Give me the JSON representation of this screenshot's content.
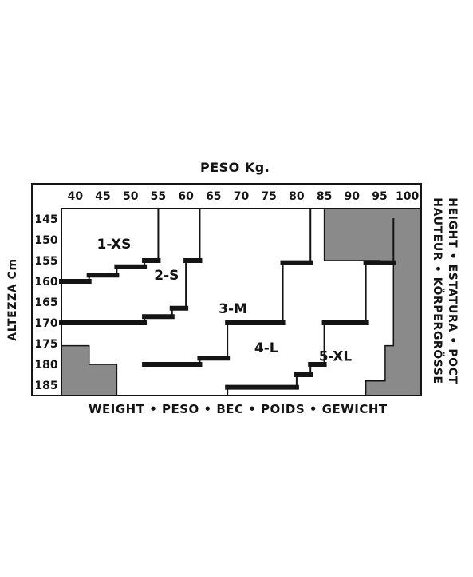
{
  "chart_data": {
    "type": "table",
    "title": "PESO Kg.",
    "xlabel": "WEIGHT • PESO • BEC • POIDS • GEWICHT",
    "ylabel": "ALTEZZA Cm",
    "right_label_line1": "HEIGHT • ESTATURA • POCT",
    "right_label_line2": "HAUTEUR • KÖRPERGRÖSSE",
    "x_ticks": [
      "40",
      "45",
      "50",
      "55",
      "60",
      "65",
      "70",
      "75",
      "80",
      "85",
      "90",
      "95",
      "100"
    ],
    "y_ticks": [
      "145",
      "150",
      "155",
      "160",
      "165",
      "170",
      "175",
      "180",
      "185"
    ],
    "xlim": [
      37.5,
      102.5
    ],
    "ylim": [
      142.5,
      187.5
    ],
    "sizes": [
      {
        "label": "1-XS",
        "label_x": 47,
        "label_y": 151
      },
      {
        "label": "2-S",
        "label_x": 56.5,
        "label_y": 158.5
      },
      {
        "label": "3-M",
        "label_x": 68.5,
        "label_y": 166.5
      },
      {
        "label": "4-L",
        "label_x": 74.5,
        "label_y": 176
      },
      {
        "label": "5-XL",
        "label_x": 87,
        "label_y": 178
      }
    ],
    "boundaries": [
      {
        "name": "xs-s",
        "points": [
          [
            37.5,
            160
          ],
          [
            42.5,
            160
          ],
          [
            42.5,
            158.5
          ],
          [
            47.5,
            158.5
          ],
          [
            47.5,
            156.5
          ],
          [
            52.5,
            156.5
          ],
          [
            52.5,
            155
          ],
          [
            55,
            155
          ],
          [
            55,
            142.5
          ]
        ]
      },
      {
        "name": "s-m",
        "points": [
          [
            37.5,
            170
          ],
          [
            52.5,
            170
          ],
          [
            52.5,
            168.5
          ],
          [
            57.5,
            168.5
          ],
          [
            57.5,
            166.5
          ],
          [
            60,
            166.5
          ],
          [
            60,
            155
          ],
          [
            62.5,
            155
          ],
          [
            62.5,
            142.5
          ]
        ]
      },
      {
        "name": "m-l",
        "points": [
          [
            52.5,
            180
          ],
          [
            62.5,
            180
          ],
          [
            62.5,
            178.5
          ],
          [
            67.5,
            178.5
          ],
          [
            67.5,
            170
          ],
          [
            72.5,
            170
          ],
          [
            72.5,
            170
          ],
          [
            77.5,
            170
          ],
          [
            77.5,
            155.5
          ],
          [
            82.5,
            155.5
          ],
          [
            82.5,
            142.5
          ]
        ]
      },
      {
        "name": "l-xl",
        "points": [
          [
            67.5,
            187.5
          ],
          [
            67.5,
            185.5
          ],
          [
            80,
            185.5
          ],
          [
            80,
            182.5
          ],
          [
            82.5,
            182.5
          ],
          [
            82.5,
            180
          ],
          [
            85,
            180
          ],
          [
            85,
            170
          ],
          [
            92.5,
            170
          ],
          [
            92.5,
            155.5
          ],
          [
            97.5,
            155.5
          ],
          [
            97.5,
            145
          ]
        ]
      }
    ],
    "grey_zones": [
      {
        "name": "top-right",
        "points": [
          [
            85,
            142.5
          ],
          [
            102.5,
            142.5
          ],
          [
            102.5,
            187.5
          ],
          [
            92.5,
            187.5
          ],
          [
            92.5,
            184
          ],
          [
            96,
            184
          ],
          [
            96,
            175.5
          ],
          [
            97.5,
            175.5
          ],
          [
            97.5,
            155.5
          ],
          [
            95,
            155.5
          ],
          [
            95,
            155
          ],
          [
            85,
            155
          ]
        ]
      },
      {
        "name": "bottom-left",
        "points": [
          [
            37.5,
            175.5
          ],
          [
            42.5,
            175.5
          ],
          [
            42.5,
            180
          ],
          [
            47.5,
            180
          ],
          [
            47.5,
            187.5
          ],
          [
            37.5,
            187.5
          ]
        ]
      }
    ]
  },
  "colors": {
    "ink": "#141414",
    "grey_zone": "#8a8a8a",
    "paper": "#ffffff"
  }
}
